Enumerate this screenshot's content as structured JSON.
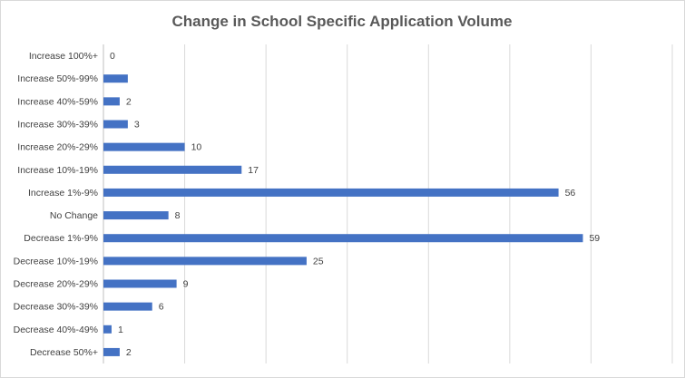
{
  "chart_data": {
    "type": "bar",
    "orientation": "horizontal",
    "title": "Change in School Specific Application Volume",
    "xlabel": "",
    "ylabel": "",
    "categories": [
      "Increase 100%+",
      "Increase 50%-99%",
      "Increase 40%-59%",
      "Increase 30%-39%",
      "Increase 20%-29%",
      "Increase 10%-19%",
      "Increase 1%-9%",
      "No Change",
      "Decrease 1%-9%",
      "Decrease 10%-19%",
      "Decrease 20%-29%",
      "Decrease 30%-39%",
      "Decrease 40%-49%",
      "Decrease 50%+"
    ],
    "values": [
      0,
      3,
      2,
      3,
      10,
      17,
      56,
      8,
      59,
      25,
      9,
      6,
      1,
      2
    ],
    "data_labels": [
      "0",
      "",
      "2",
      "3",
      "10",
      "17",
      "56",
      "8",
      "59",
      "25",
      "9",
      "6",
      "1",
      "2"
    ],
    "xlim": [
      0,
      70
    ],
    "x_gridline_step": 10,
    "grid": true,
    "legend": "none",
    "bar_color": "#4472C4"
  }
}
